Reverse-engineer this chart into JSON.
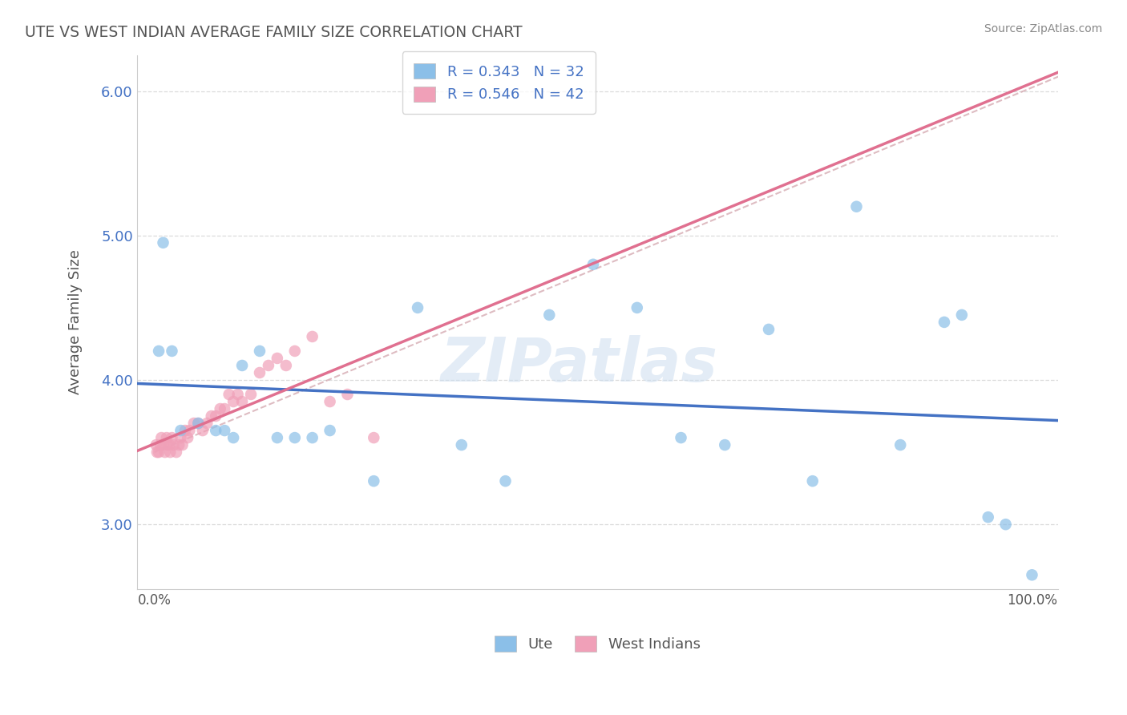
{
  "title": "UTE VS WEST INDIAN AVERAGE FAMILY SIZE CORRELATION CHART",
  "source_text": "Source: ZipAtlas.com",
  "ylabel": "Average Family Size",
  "watermark": "ZIPatlas",
  "ute_R": 0.343,
  "ute_N": 32,
  "wi_R": 0.546,
  "wi_N": 42,
  "ute_color": "#8bbfe8",
  "wi_color": "#f0a0b8",
  "ute_line_color": "#4472c4",
  "wi_line_color": "#e07090",
  "dash_line_color": "#d0a0a8",
  "ute_x": [
    0.5,
    1.0,
    2.0,
    3.0,
    5.0,
    7.0,
    8.0,
    9.0,
    10.0,
    12.0,
    14.0,
    16.0,
    18.0,
    20.0,
    25.0,
    30.0,
    35.0,
    40.0,
    45.0,
    50.0,
    55.0,
    60.0,
    65.0,
    70.0,
    75.0,
    80.0,
    85.0,
    90.0,
    92.0,
    95.0,
    97.0,
    100.0
  ],
  "ute_y": [
    4.2,
    4.95,
    4.2,
    3.65,
    3.7,
    3.65,
    3.65,
    3.6,
    4.1,
    4.2,
    3.6,
    3.6,
    3.6,
    3.65,
    3.3,
    4.5,
    3.55,
    3.3,
    4.45,
    4.8,
    4.5,
    3.6,
    3.55,
    4.35,
    3.3,
    5.2,
    3.55,
    4.4,
    4.45,
    3.05,
    3.0,
    2.65
  ],
  "wi_x": [
    0.2,
    0.3,
    0.5,
    0.7,
    0.8,
    1.0,
    1.2,
    1.4,
    1.5,
    1.7,
    1.8,
    2.0,
    2.2,
    2.5,
    2.8,
    3.0,
    3.2,
    3.5,
    3.8,
    4.0,
    4.5,
    5.0,
    5.5,
    6.0,
    6.5,
    7.0,
    7.5,
    8.0,
    8.5,
    9.0,
    9.5,
    10.0,
    11.0,
    12.0,
    13.0,
    14.0,
    15.0,
    16.0,
    18.0,
    20.0,
    22.0,
    25.0
  ],
  "wi_y": [
    3.55,
    3.5,
    3.5,
    3.55,
    3.6,
    3.55,
    3.5,
    3.6,
    3.55,
    3.55,
    3.5,
    3.6,
    3.55,
    3.5,
    3.55,
    3.6,
    3.55,
    3.65,
    3.6,
    3.65,
    3.7,
    3.7,
    3.65,
    3.7,
    3.75,
    3.75,
    3.8,
    3.8,
    3.9,
    3.85,
    3.9,
    3.85,
    3.9,
    4.05,
    4.1,
    4.15,
    4.1,
    4.2,
    4.3,
    3.85,
    3.9,
    3.6
  ],
  "ylim": [
    2.55,
    6.25
  ],
  "xlim": [
    -2.0,
    103.0
  ],
  "yticks": [
    3.0,
    4.0,
    5.0,
    6.0
  ],
  "background_color": "#ffffff",
  "grid_color": "#d8d8d8",
  "title_color": "#555555",
  "axis_label_color": "#555555",
  "tick_color": "#4472c4"
}
